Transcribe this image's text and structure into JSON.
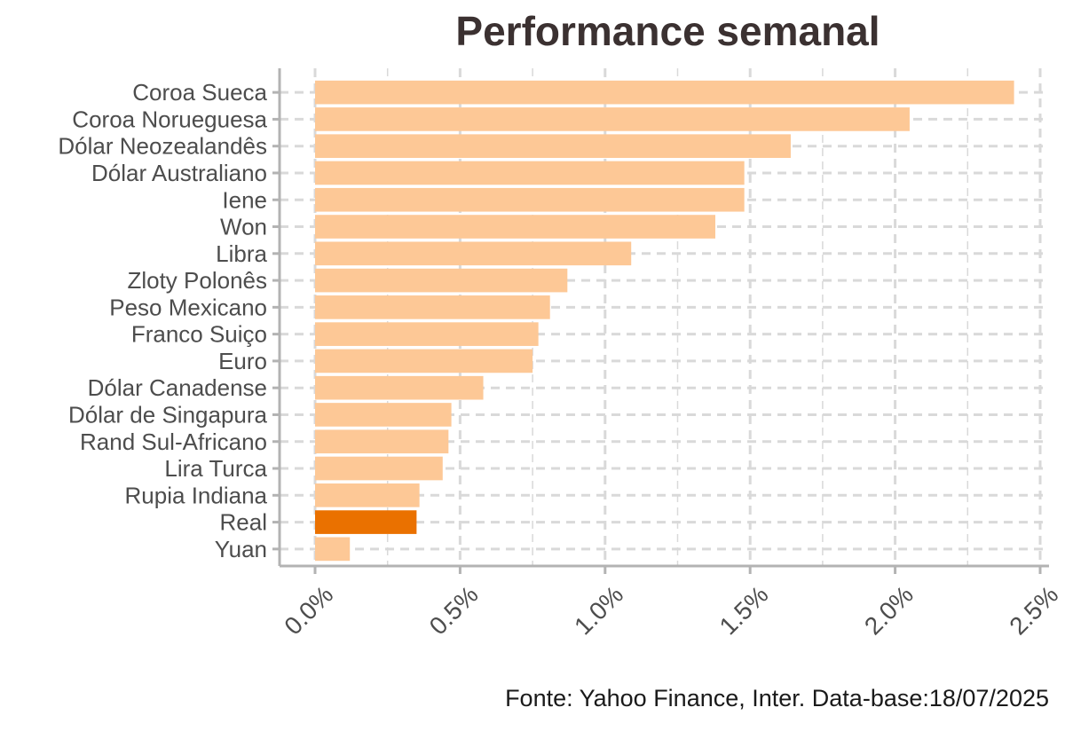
{
  "chart_data": {
    "type": "bar",
    "orientation": "horizontal",
    "title": "Performance semanal",
    "caption": "Fonte: Yahoo Finance, Inter. Data-base:18/07/2025",
    "categories": [
      "Coroa Sueca",
      "Coroa Norueguesa",
      "Dólar Neozealandês",
      "Dólar Australiano",
      "Iene",
      "Won",
      "Libra",
      "Zloty Polonês",
      "Peso Mexicano",
      "Franco Suiço",
      "Euro",
      "Dólar Canadense",
      "Dólar de Singapura",
      "Rand Sul-Africano",
      "Lira Turca",
      "Rupia Indiana",
      "Real",
      "Yuan"
    ],
    "values": [
      2.41,
      2.05,
      1.64,
      1.48,
      1.48,
      1.38,
      1.09,
      0.87,
      0.81,
      0.77,
      0.75,
      0.58,
      0.47,
      0.46,
      0.44,
      0.36,
      0.35,
      0.12
    ],
    "highlight": "Real",
    "xlim": [
      0,
      2.5
    ],
    "x_ticks": [
      "0.0%",
      "0.5%",
      "1.0%",
      "1.5%",
      "2.0%",
      "2.5%"
    ],
    "x_tick_values": [
      0,
      0.5,
      1.0,
      1.5,
      2.0,
      2.5
    ],
    "grid": "dashed",
    "colors": {
      "bar": "#fdc896",
      "highlight": "#ea7100",
      "grid": "#d9d9d9",
      "axis": "#b3b3b3",
      "tick_label": "#4d4d4d"
    }
  }
}
